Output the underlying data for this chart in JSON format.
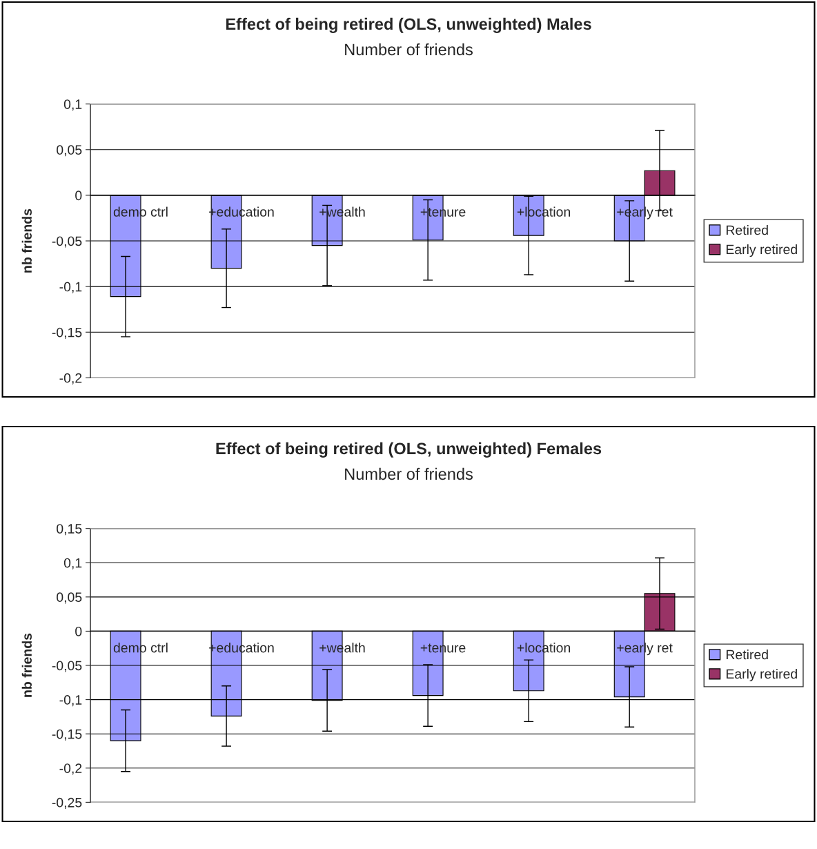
{
  "chart_data": [
    {
      "type": "bar",
      "title": "Effect of being retired (OLS, unweighted) Males",
      "subtitle": "Number of friends",
      "ylabel": "nb friends",
      "categories": [
        "demo ctrl",
        "+education",
        "+wealth",
        "+tenure",
        "+location",
        "+early ret"
      ],
      "series": [
        {
          "name": "Retired",
          "color": "#9999ff",
          "values": [
            -0.111,
            -0.08,
            -0.055,
            -0.049,
            -0.044,
            -0.05
          ],
          "errors": [
            0.044,
            0.043,
            0.044,
            0.044,
            0.043,
            0.044
          ]
        },
        {
          "name": "Early retired",
          "color": "#993366",
          "values": [
            null,
            null,
            null,
            null,
            null,
            0.027
          ],
          "errors": [
            null,
            null,
            null,
            null,
            null,
            0.044
          ]
        }
      ],
      "ylim": [
        -0.2,
        0.1
      ],
      "yticks": [
        {
          "value": -0.2,
          "label": "-0,2"
        },
        {
          "value": -0.15,
          "label": "-0,15"
        },
        {
          "value": -0.1,
          "label": "-0,1"
        },
        {
          "value": -0.05,
          "label": "-0,05"
        },
        {
          "value": 0,
          "label": "0"
        },
        {
          "value": 0.05,
          "label": "0,05"
        },
        {
          "value": 0.1,
          "label": "0,1"
        }
      ],
      "grid": "y",
      "legend": "right"
    },
    {
      "type": "bar",
      "title": "Effect of being retired (OLS, unweighted) Females",
      "subtitle": "Number of friends",
      "ylabel": "nb friends",
      "categories": [
        "demo ctrl",
        "+education",
        "+wealth",
        "+tenure",
        "+location",
        "+early ret"
      ],
      "series": [
        {
          "name": "Retired",
          "color": "#9999ff",
          "values": [
            -0.16,
            -0.124,
            -0.101,
            -0.094,
            -0.087,
            -0.096
          ],
          "errors": [
            0.045,
            0.044,
            0.045,
            0.045,
            0.045,
            0.044
          ]
        },
        {
          "name": "Early retired",
          "color": "#993366",
          "values": [
            null,
            null,
            null,
            null,
            null,
            0.055
          ],
          "errors": [
            null,
            null,
            null,
            null,
            null,
            0.052
          ]
        }
      ],
      "ylim": [
        -0.25,
        0.15
      ],
      "yticks": [
        {
          "value": -0.25,
          "label": "-0,25"
        },
        {
          "value": -0.2,
          "label": "-0,2"
        },
        {
          "value": -0.15,
          "label": "-0,15"
        },
        {
          "value": -0.1,
          "label": "-0,1"
        },
        {
          "value": -0.05,
          "label": "-0,05"
        },
        {
          "value": 0,
          "label": "0"
        },
        {
          "value": 0.05,
          "label": "0,05"
        },
        {
          "value": 0.1,
          "label": "0,1"
        },
        {
          "value": 0.15,
          "label": "0,15"
        }
      ],
      "grid": "y",
      "legend": "right"
    }
  ]
}
